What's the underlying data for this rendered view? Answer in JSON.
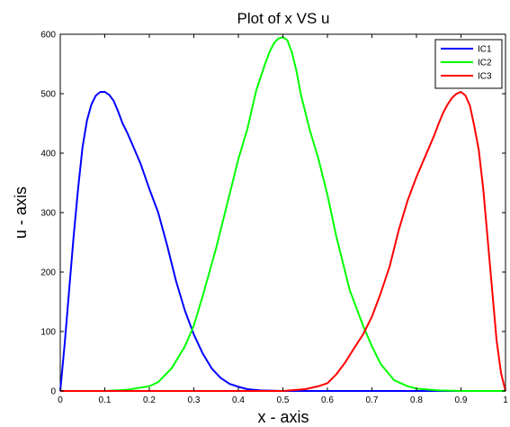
{
  "chart_data": {
    "type": "line",
    "title": "Plot of x VS u",
    "xlabel": "x - axis",
    "ylabel": "u - axis",
    "xlim": [
      0,
      1
    ],
    "ylim": [
      0,
      600
    ],
    "x_ticks": [
      "0",
      "0.1",
      "0.2",
      "0.3",
      "0.4",
      "0.5",
      "0.6",
      "0.7",
      "0.8",
      "0.9",
      "1"
    ],
    "y_ticks": [
      "0",
      "100",
      "200",
      "300",
      "400",
      "500",
      "600"
    ],
    "x_tick_values": [
      0,
      0.1,
      0.2,
      0.3,
      0.4,
      0.5,
      0.6,
      0.7,
      0.8,
      0.9,
      1
    ],
    "y_tick_values": [
      0,
      100,
      200,
      300,
      400,
      500,
      600
    ],
    "grid": false,
    "legend_position": "top-right",
    "series": [
      {
        "name": "IC1",
        "color": "#0000ff",
        "x": [
          0,
          0.01,
          0.02,
          0.03,
          0.04,
          0.05,
          0.06,
          0.07,
          0.08,
          0.09,
          0.1,
          0.11,
          0.12,
          0.13,
          0.14,
          0.15,
          0.16,
          0.18,
          0.2,
          0.22,
          0.24,
          0.26,
          0.28,
          0.3,
          0.32,
          0.34,
          0.36,
          0.38,
          0.4,
          0.42,
          0.45,
          0.5,
          0.6,
          0.7,
          0.8,
          0.9,
          1
        ],
        "y": [
          0,
          80,
          170,
          260,
          340,
          410,
          455,
          482,
          497,
          503,
          503,
          498,
          488,
          470,
          450,
          435,
          418,
          383,
          340,
          300,
          245,
          185,
          135,
          95,
          63,
          38,
          22,
          12,
          7,
          3,
          1,
          0,
          0,
          0,
          0,
          0,
          0
        ]
      },
      {
        "name": "IC2",
        "color": "#00ff00",
        "x": [
          0,
          0.1,
          0.15,
          0.2,
          0.22,
          0.25,
          0.28,
          0.3,
          0.32,
          0.35,
          0.38,
          0.4,
          0.42,
          0.44,
          0.46,
          0.47,
          0.48,
          0.49,
          0.5,
          0.51,
          0.52,
          0.53,
          0.54,
          0.56,
          0.58,
          0.6,
          0.62,
          0.65,
          0.68,
          0.7,
          0.72,
          0.75,
          0.78,
          0.8,
          0.85,
          0.9,
          1
        ],
        "y": [
          0,
          0,
          2,
          8,
          15,
          38,
          75,
          110,
          160,
          240,
          330,
          390,
          440,
          505,
          550,
          570,
          585,
          593,
          595,
          590,
          570,
          540,
          500,
          440,
          390,
          330,
          260,
          170,
          110,
          75,
          45,
          18,
          8,
          4,
          1,
          0,
          0
        ]
      },
      {
        "name": "IC3",
        "color": "#ff0000",
        "x": [
          0,
          0.5,
          0.55,
          0.58,
          0.6,
          0.62,
          0.64,
          0.66,
          0.68,
          0.7,
          0.72,
          0.74,
          0.76,
          0.78,
          0.8,
          0.82,
          0.84,
          0.85,
          0.86,
          0.87,
          0.88,
          0.89,
          0.9,
          0.91,
          0.92,
          0.93,
          0.94,
          0.95,
          0.96,
          0.97,
          0.98,
          0.99,
          1
        ],
        "y": [
          0,
          0,
          3,
          8,
          13,
          28,
          48,
          72,
          95,
          125,
          165,
          210,
          270,
          320,
          360,
          395,
          430,
          450,
          468,
          482,
          493,
          500,
          503,
          497,
          480,
          445,
          405,
          340,
          255,
          170,
          85,
          30,
          0
        ]
      }
    ]
  }
}
